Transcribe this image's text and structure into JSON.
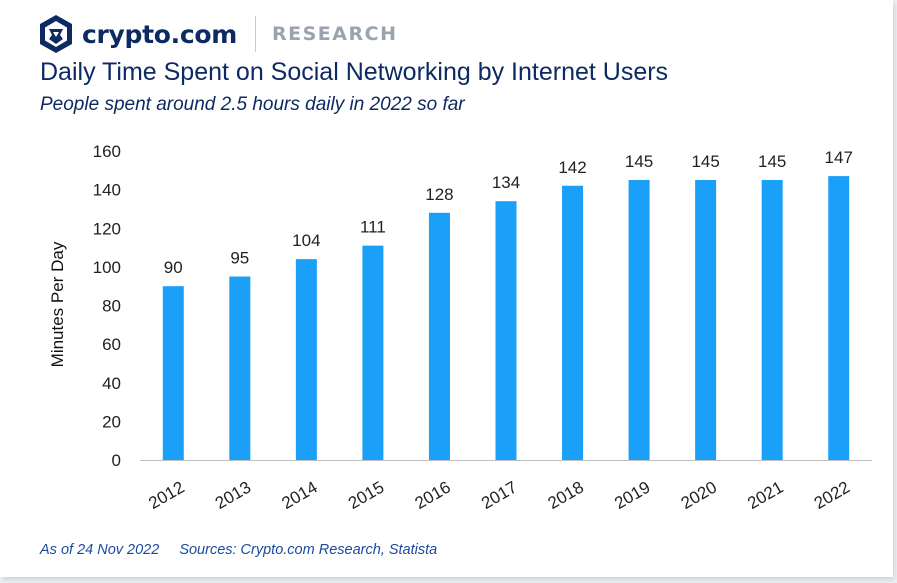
{
  "header": {
    "brand_name": "crypto.com",
    "section": "RESEARCH",
    "logo_icon": "crypto-com-lion-shield-icon",
    "brand_color": "#0d2a63"
  },
  "footer": {
    "as_of": "As of 24 Nov 2022",
    "sources": "Sources: Crypto.com Research, Statista"
  },
  "chart_data": {
    "type": "bar",
    "title": "Daily Time Spent on Social Networking by Internet Users",
    "subtitle": "People spent around 2.5 hours daily in 2022 so far",
    "xlabel": "",
    "ylabel": "Minutes Per Day",
    "categories": [
      "2012",
      "2013",
      "2014",
      "2015",
      "2016",
      "2017",
      "2018",
      "2019",
      "2020",
      "2021",
      "2022"
    ],
    "values": [
      90,
      95,
      104,
      111,
      128,
      134,
      142,
      145,
      145,
      145,
      147
    ],
    "ylim": [
      0,
      160
    ],
    "yticks": [
      0,
      20,
      40,
      60,
      80,
      100,
      120,
      140,
      160
    ],
    "grid": false,
    "legend": "none",
    "bar_color": "#1aa0f8",
    "data_labels": true
  }
}
